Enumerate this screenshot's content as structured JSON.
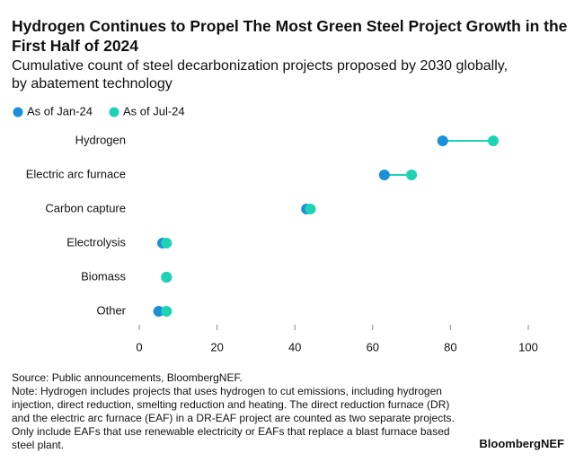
{
  "chart_data": {
    "type": "dumbbell",
    "title": "Hydrogen Continues to Propel The Most Green Steel Project Growth in the First Half of 2024",
    "subtitle": "Cumulative count of steel decarbonization projects proposed by 2030 globally, by abatement technology",
    "categories": [
      "Hydrogen",
      "Electric arc furnace",
      "Carbon capture",
      "Electrolysis",
      "Biomass",
      "Other"
    ],
    "series": [
      {
        "name": "As of Jan-24",
        "color": "#1b8fd8",
        "values": [
          78,
          63,
          43,
          6,
          7,
          5
        ]
      },
      {
        "name": "As of Jul-24",
        "color": "#1ed3b4",
        "values": [
          91,
          70,
          44,
          7,
          7,
          7
        ]
      }
    ],
    "connector_color": "#1ed3b4",
    "xlim": [
      0,
      100
    ],
    "xticks": [
      0,
      20,
      40,
      60,
      80,
      100
    ],
    "source": "Source: Public announcements, BloombergNEF.",
    "note": "Note: Hydrogen includes projects that uses hydrogen to cut emissions, including hydrogen injection, direct reduction, smelting reduction and heating. The direct reduction furnace (DR) and the electric arc furnace (EAF) in a DR-EAF project are counted as two separate projects. Only include EAFs that use renewable electricity or EAFs that replace a blast furnace based steel plant.",
    "brand": "BloombergNEF"
  }
}
